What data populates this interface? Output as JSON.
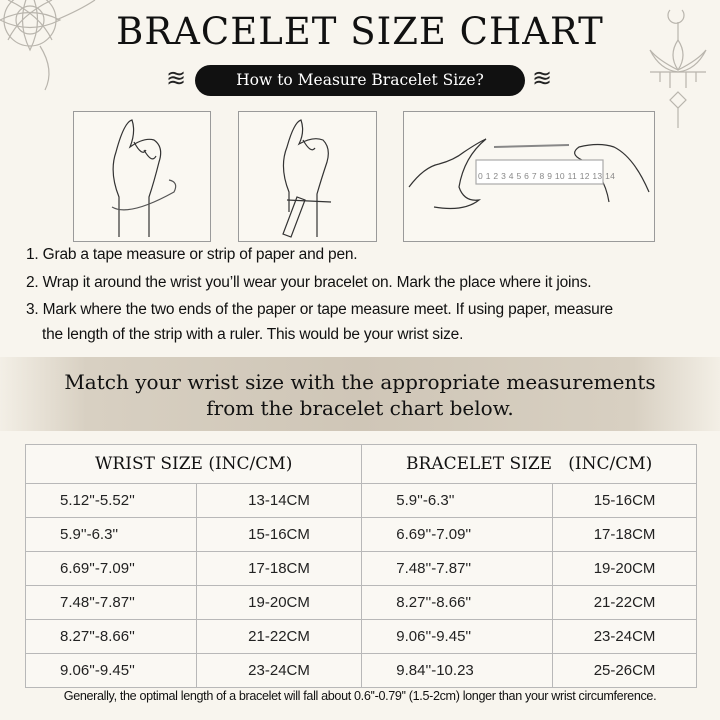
{
  "title": "BRACELET SIZE CHART",
  "subtitle": "How to Measure Bracelet Size?",
  "ruler_numbers": "0 1 2 3 4 5 6 7 8 9 10 11 12 13 14",
  "steps": [
    "1. Grab a tape measure or strip of paper and pen.",
    "2. Wrap it around the wrist you’ll wear your bracelet on. Mark the place where it joins.",
    "3. Mark where the two ends of the paper or tape measure meet. If using paper, measure",
    "the length of the strip with a ruler. This would be your wrist size."
  ],
  "banner": {
    "line1": "Match your wrist size with the appropriate measurements",
    "line2": "from the bracelet chart below."
  },
  "table": {
    "headers": [
      "WRIST SIZE (INC/CM)",
      "BRACELET SIZE   (INC/CM)"
    ],
    "rows": [
      [
        "5.12''-5.52''",
        "13-14CM",
        "5.9''-6.3''",
        "15-16CM"
      ],
      [
        "5.9''-6.3''",
        "15-16CM",
        "6.69''-7.09''",
        "17-18CM"
      ],
      [
        "6.69''-7.09''",
        "17-18CM",
        "7.48''-7.87''",
        "19-20CM"
      ],
      [
        "7.48''-7.87''",
        "19-20CM",
        "8.27''-8.66''",
        "21-22CM"
      ],
      [
        "8.27''-8.66''",
        "21-22CM",
        "9.06''-9.45''",
        "23-24CM"
      ],
      [
        "9.06''-9.45''",
        "23-24CM",
        "9.84''-10.23",
        "25-26CM"
      ]
    ]
  },
  "footnote": "Generally, the optimal length of a bracelet will fall about 0.6''-0.79'' (1.5-2cm) longer than your wrist circumference."
}
